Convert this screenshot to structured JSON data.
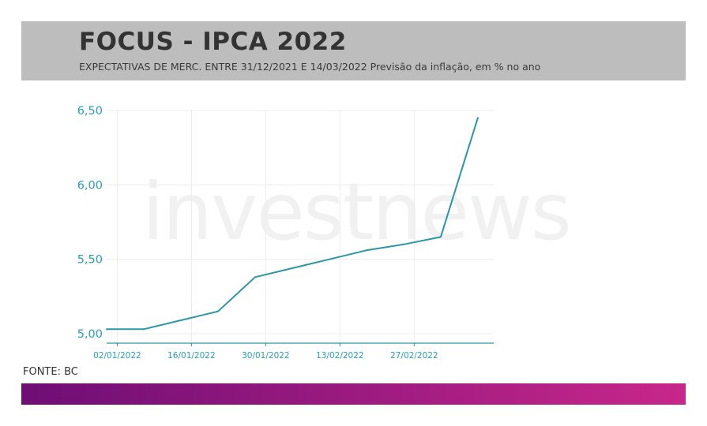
{
  "header": {
    "title": "FOCUS - IPCA 2022",
    "subtitle": "EXPECTATIVAS DE MERC. ENTRE 31/12/2021 E 14/03/2022 Previsão da inflação, em % no ano"
  },
  "watermark": "investnews",
  "source": "FONTE: BC",
  "colors": {
    "header_bg": "#bdbdbd",
    "line": "#2a97a3",
    "axis_text": "#2aa0b6",
    "gradient_start": "#6e0e75",
    "gradient_end": "#c8278a"
  },
  "chart_data": {
    "type": "line",
    "title": "FOCUS - IPCA 2022",
    "xlabel": "",
    "ylabel": "",
    "ylim": [
      5.0,
      6.5
    ],
    "xlim": [
      "2021-12-31",
      "2022-03-14"
    ],
    "yticks": [
      5.0,
      5.5,
      6.0,
      6.5
    ],
    "ytick_labels": [
      "5,00",
      "5,50",
      "6,00",
      "6,50"
    ],
    "xticks": [
      "2022-01-02",
      "2022-01-16",
      "2022-01-30",
      "2022-02-13",
      "2022-02-27"
    ],
    "xtick_labels": [
      "02/01/2022",
      "16/01/2022",
      "30/01/2022",
      "13/02/2022",
      "27/02/2022"
    ],
    "grid": true,
    "series": [
      {
        "x": [
          "2021-12-31",
          "2022-01-07",
          "2022-01-14",
          "2022-01-21",
          "2022-01-28",
          "2022-02-04",
          "2022-02-11",
          "2022-02-18",
          "2022-02-25",
          "2022-03-04",
          "2022-03-11"
        ],
        "values": [
          5.03,
          5.03,
          5.09,
          5.15,
          5.38,
          5.44,
          5.5,
          5.56,
          5.6,
          5.65,
          6.45
        ]
      }
    ]
  }
}
